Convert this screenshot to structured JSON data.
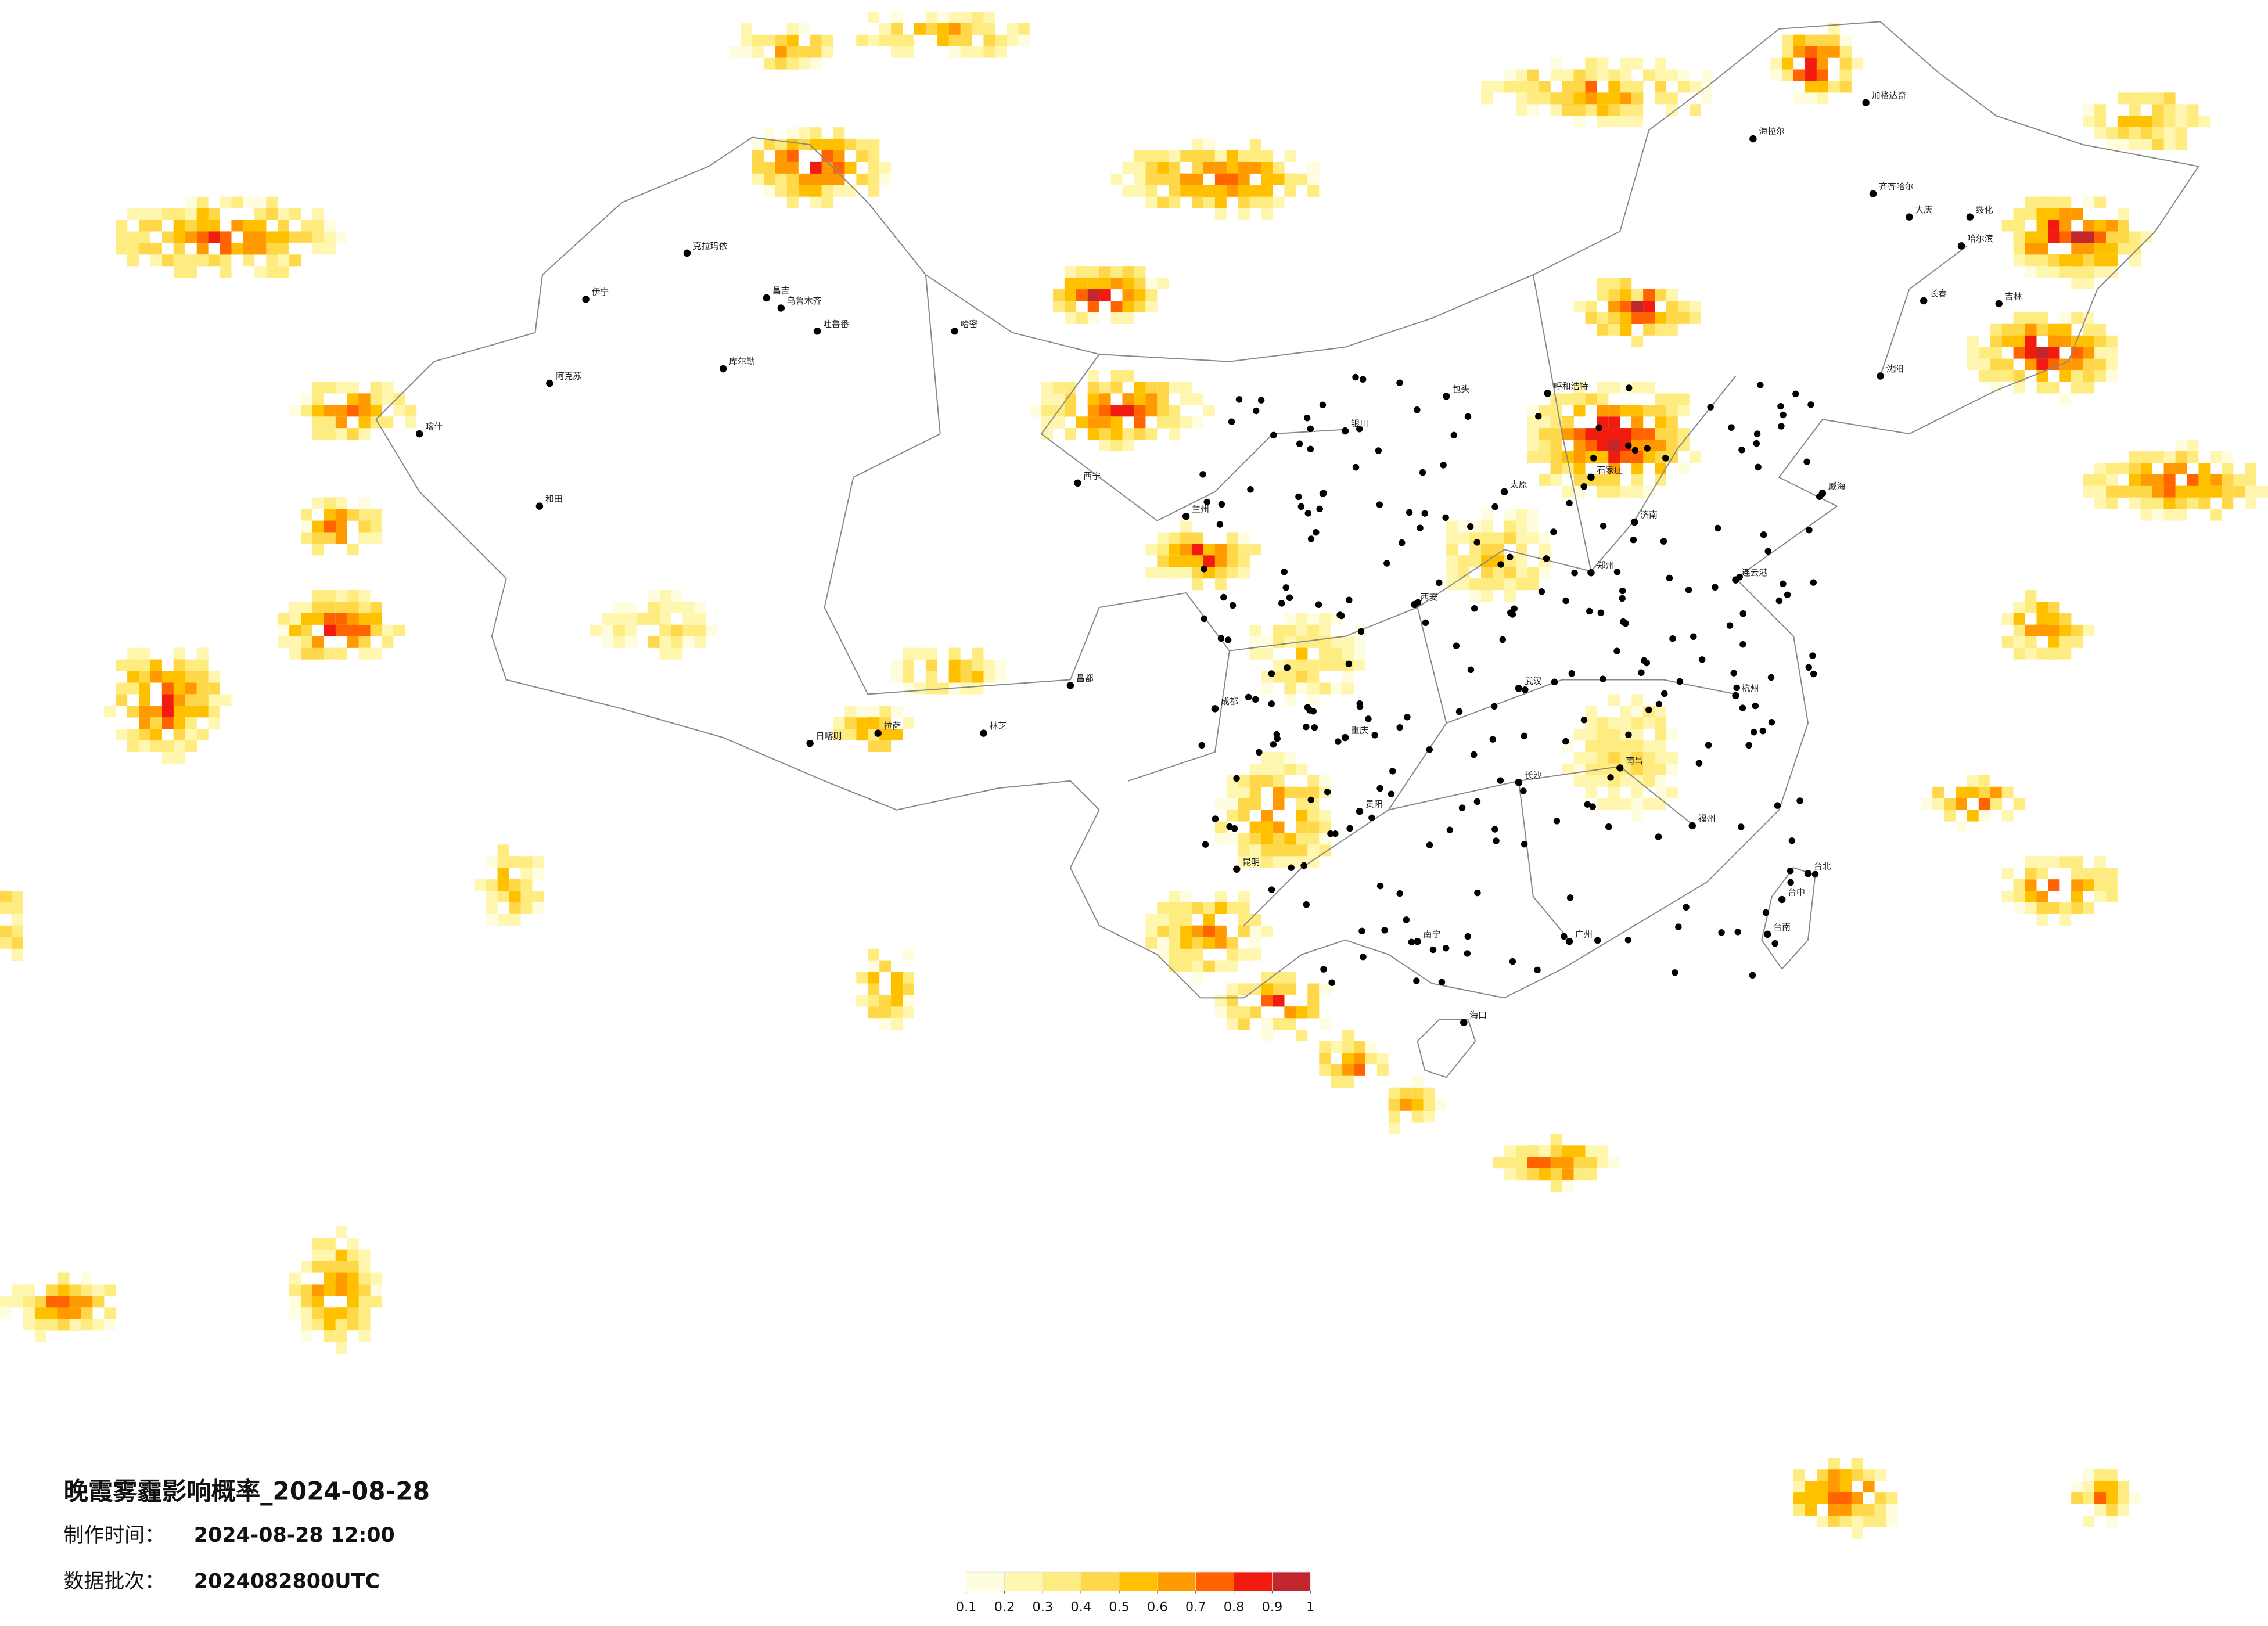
{
  "title": "晚霞雾霾影响概率_2024-08-28",
  "production_time": {
    "label": "制作时间：",
    "value": "2024-08-28 12:00"
  },
  "data_batch": {
    "label": "数据批次：",
    "value": "2024082800UTC"
  },
  "legend": {
    "colors": [
      "#fffde0",
      "#fff6b0",
      "#ffec80",
      "#ffd84a",
      "#ffc000",
      "#ff9a00",
      "#ff6400",
      "#f21b10",
      "#c1272d"
    ],
    "ticks": [
      0.1,
      0.2,
      0.3,
      0.4,
      0.5,
      0.6,
      0.7,
      0.8,
      0.9,
      1
    ]
  },
  "cities": [
    "克拉玛依",
    "伊宁",
    "昌吉",
    "乌鲁木齐",
    "吐鲁番",
    "库尔勒",
    "阿克苏",
    "喀什",
    "和田",
    "哈密",
    "海拉尔",
    "加格达奇",
    "齐齐哈尔",
    "大庆",
    "哈尔滨",
    "绥化",
    "长春",
    "吉林",
    "沈阳",
    "呼和浩特",
    "包头",
    "银川",
    "西宁",
    "兰州",
    "拉萨",
    "日喀则",
    "林芝",
    "昌都",
    "成都",
    "重庆",
    "西安",
    "郑州",
    "武汉",
    "长沙",
    "南昌",
    "杭州",
    "福州",
    "广州",
    "南宁",
    "昆明",
    "贵阳",
    "海口",
    "台北",
    "台中",
    "台南",
    "济南",
    "威海",
    "连云港",
    "太原",
    "石家庄"
  ]
}
